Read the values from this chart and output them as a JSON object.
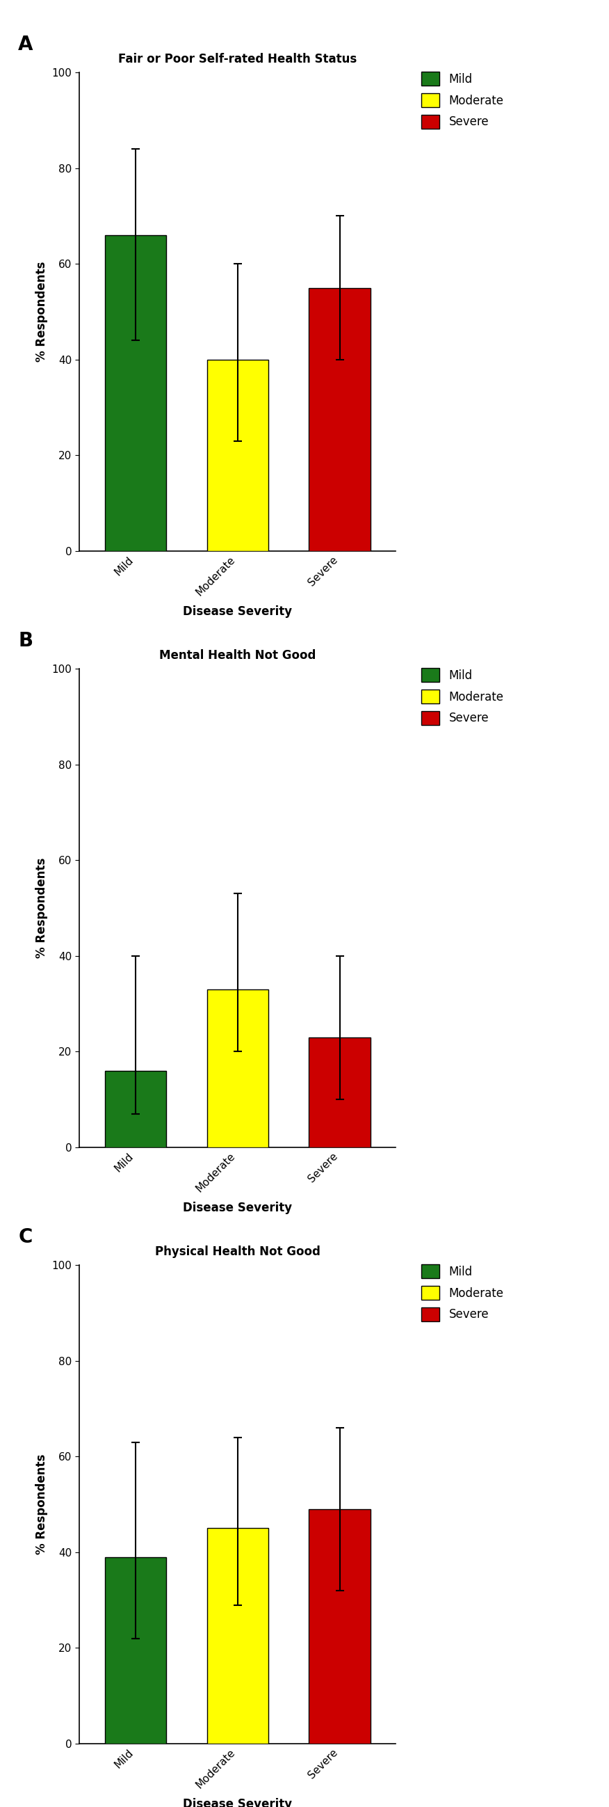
{
  "panels": [
    {
      "label": "A",
      "title": "Fair or Poor Self-rated Health Status",
      "categories": [
        "Mild",
        "Moderate",
        "Severe"
      ],
      "values": [
        66,
        40,
        55
      ],
      "errors_up": [
        18,
        20,
        15
      ],
      "errors_down": [
        22,
        17,
        15
      ],
      "colors": [
        "#1a7a1a",
        "#ffff00",
        "#cc0000"
      ],
      "ylim": [
        0,
        100
      ],
      "yticks": [
        0,
        20,
        40,
        60,
        80,
        100
      ],
      "ylabel": "% Respondents",
      "xlabel": "Disease Severity"
    },
    {
      "label": "B",
      "title": "Mental Health Not Good",
      "categories": [
        "Mild",
        "Moderate",
        "Severe"
      ],
      "values": [
        16,
        33,
        23
      ],
      "errors_up": [
        24,
        20,
        17
      ],
      "errors_down": [
        9,
        13,
        13
      ],
      "colors": [
        "#1a7a1a",
        "#ffff00",
        "#cc0000"
      ],
      "ylim": [
        0,
        100
      ],
      "yticks": [
        0,
        20,
        40,
        60,
        80,
        100
      ],
      "ylabel": "% Respondents",
      "xlabel": "Disease Severity"
    },
    {
      "label": "C",
      "title": "Physical Health Not Good",
      "categories": [
        "Mild",
        "Moderate",
        "Severe"
      ],
      "values": [
        39,
        45,
        49
      ],
      "errors_up": [
        24,
        19,
        17
      ],
      "errors_down": [
        17,
        16,
        17
      ],
      "colors": [
        "#1a7a1a",
        "#ffff00",
        "#cc0000"
      ],
      "ylim": [
        0,
        100
      ],
      "yticks": [
        0,
        20,
        40,
        60,
        80,
        100
      ],
      "ylabel": "% Respondents",
      "xlabel": "Disease Severity"
    }
  ],
  "legend_labels": [
    "Mild",
    "Moderate",
    "Severe"
  ],
  "legend_colors": [
    "#1a7a1a",
    "#ffff00",
    "#cc0000"
  ],
  "bar_width": 0.6,
  "background_color": "#ffffff",
  "error_capsize": 4,
  "error_linewidth": 1.5,
  "bar_edge_color": "#000000",
  "bar_edge_linewidth": 1.0,
  "title_fontsize": 12,
  "axis_label_fontsize": 12,
  "tick_fontsize": 11,
  "legend_fontsize": 12,
  "panel_label_fontsize": 20
}
